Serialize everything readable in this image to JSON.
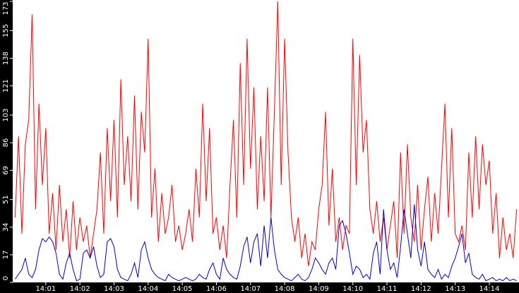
{
  "chart_data": {
    "type": "line",
    "x": [
      0.1,
      0.2,
      0.3,
      0.4,
      0.5,
      0.6,
      0.7,
      0.8,
      0.9,
      1.0,
      1.1,
      1.2,
      1.3,
      1.4,
      1.5,
      1.6,
      1.7,
      1.8,
      1.9,
      2.0,
      2.1,
      2.2,
      2.3,
      2.4,
      2.5,
      2.6,
      2.7,
      2.8,
      2.9,
      3.0,
      3.1,
      3.2,
      3.3,
      3.4,
      3.5,
      3.6,
      3.7,
      3.8,
      3.9,
      4.0,
      4.1,
      4.2,
      4.3,
      4.4,
      4.5,
      4.6,
      4.7,
      4.8,
      4.9,
      5.0,
      5.1,
      5.2,
      5.3,
      5.4,
      5.5,
      5.6,
      5.7,
      5.8,
      5.9,
      6.0,
      6.1,
      6.2,
      6.3,
      6.4,
      6.5,
      6.6,
      6.7,
      6.8,
      6.9,
      7.0,
      7.1,
      7.2,
      7.3,
      7.4,
      7.5,
      7.6,
      7.7,
      7.8,
      7.9,
      8.0,
      8.1,
      8.2,
      8.3,
      8.4,
      8.5,
      8.6,
      8.7,
      8.8,
      8.9,
      9.0,
      9.1,
      9.2,
      9.3,
      9.4,
      9.5,
      9.6,
      9.7,
      9.8,
      9.9,
      10.0,
      10.1,
      10.2,
      10.3,
      10.4,
      10.5,
      10.6,
      10.7,
      10.8,
      10.9,
      11.0,
      11.1,
      11.2,
      11.3,
      11.4,
      11.5,
      11.6,
      11.7,
      11.8,
      11.9,
      12.0,
      12.1,
      12.2,
      12.3,
      12.4,
      12.5,
      12.6,
      12.7,
      12.8,
      12.9,
      13.0,
      13.1,
      13.2,
      13.3,
      13.4,
      13.5,
      13.6,
      13.7,
      13.8,
      13.9,
      14.0,
      14.1,
      14.2,
      14.3,
      14.4,
      14.5,
      14.6,
      14.7,
      14.8
    ],
    "series": [
      {
        "color": "#ff0000",
        "values": [
          40,
          90,
          30,
          85,
          100,
          165,
          45,
          110,
          60,
          95,
          30,
          55,
          20,
          60,
          25,
          45,
          15,
          50,
          20,
          40,
          25,
          35,
          15,
          30,
          45,
          80,
          30,
          95,
          50,
          100,
          40,
          125,
          60,
          90,
          50,
          115,
          45,
          105,
          80,
          150,
          40,
          70,
          25,
          55,
          30,
          40,
          60,
          25,
          35,
          20,
          30,
          45,
          25,
          70,
          40,
          110,
          50,
          95,
          30,
          40,
          20,
          35,
          15,
          60,
          100,
          40,
          135,
          60,
          150,
          70,
          120,
          45,
          90,
          50,
          120,
          40,
          105,
          173,
          60,
          150,
          80,
          40,
          25,
          40,
          15,
          30,
          10,
          25,
          20,
          45,
          60,
          105,
          35,
          70,
          25,
          40,
          20,
          35,
          30,
          150,
          60,
          140,
          80,
          100,
          45,
          30,
          50,
          25,
          40,
          20,
          35,
          50,
          15,
          80,
          30,
          85,
          40,
          25,
          60,
          20,
          45,
          65,
          25,
          55,
          30,
          70,
          110,
          40,
          95,
          30,
          25,
          35,
          20,
          80,
          40,
          90,
          45,
          85,
          60,
          75,
          30,
          55,
          15,
          40,
          20,
          30,
          15,
          45
        ]
      },
      {
        "color": "#0000cc",
        "values": [
          2,
          5,
          8,
          15,
          5,
          3,
          8,
          20,
          27,
          25,
          28,
          25,
          18,
          5,
          2,
          12,
          18,
          8,
          1,
          2,
          18,
          20,
          15,
          22,
          10,
          3,
          5,
          25,
          27,
          22,
          8,
          3,
          2,
          1,
          5,
          12,
          3,
          20,
          25,
          15,
          8,
          5,
          3,
          2,
          1,
          5,
          3,
          2,
          1,
          2,
          3,
          2,
          1,
          2,
          5,
          3,
          2,
          8,
          12,
          5,
          2,
          15,
          8,
          5,
          3,
          2,
          10,
          22,
          28,
          12,
          25,
          30,
          10,
          35,
          15,
          40,
          20,
          8,
          5,
          3,
          2,
          1,
          3,
          5,
          2,
          1,
          3,
          8,
          15,
          12,
          8,
          5,
          12,
          15,
          8,
          35,
          38,
          30,
          18,
          5,
          10,
          8,
          3,
          5,
          2,
          18,
          25,
          5,
          45,
          20,
          8,
          12,
          3,
          22,
          45,
          30,
          15,
          48,
          20,
          10,
          25,
          8,
          5,
          3,
          8,
          2,
          5,
          3,
          10,
          15,
          22,
          30,
          12,
          18,
          5,
          3,
          2,
          5,
          1,
          2,
          3,
          1,
          2,
          1,
          3,
          1,
          2,
          1
        ]
      }
    ],
    "xlim": [
      0.03,
      14.87
    ],
    "xticks": [
      {
        "value": 1,
        "label": "14:01"
      },
      {
        "value": 2,
        "label": "14:02"
      },
      {
        "value": 3,
        "label": "14:03"
      },
      {
        "value": 4,
        "label": "14:04"
      },
      {
        "value": 5,
        "label": "14:05"
      },
      {
        "value": 6,
        "label": "14:06"
      },
      {
        "value": 7,
        "label": "14:07"
      },
      {
        "value": 8,
        "label": "14:08"
      },
      {
        "value": 9,
        "label": "14:09"
      },
      {
        "value": 10,
        "label": "14:10"
      },
      {
        "value": 11,
        "label": "14:11"
      },
      {
        "value": 12,
        "label": "14:12"
      },
      {
        "value": 13,
        "label": "14:13"
      },
      {
        "value": 14,
        "label": "14:14"
      }
    ],
    "ylim": [
      0,
      173
    ],
    "yticks": [
      0,
      17,
      34,
      51,
      69,
      86,
      103,
      121,
      138,
      155,
      173
    ],
    "grid": false
  }
}
